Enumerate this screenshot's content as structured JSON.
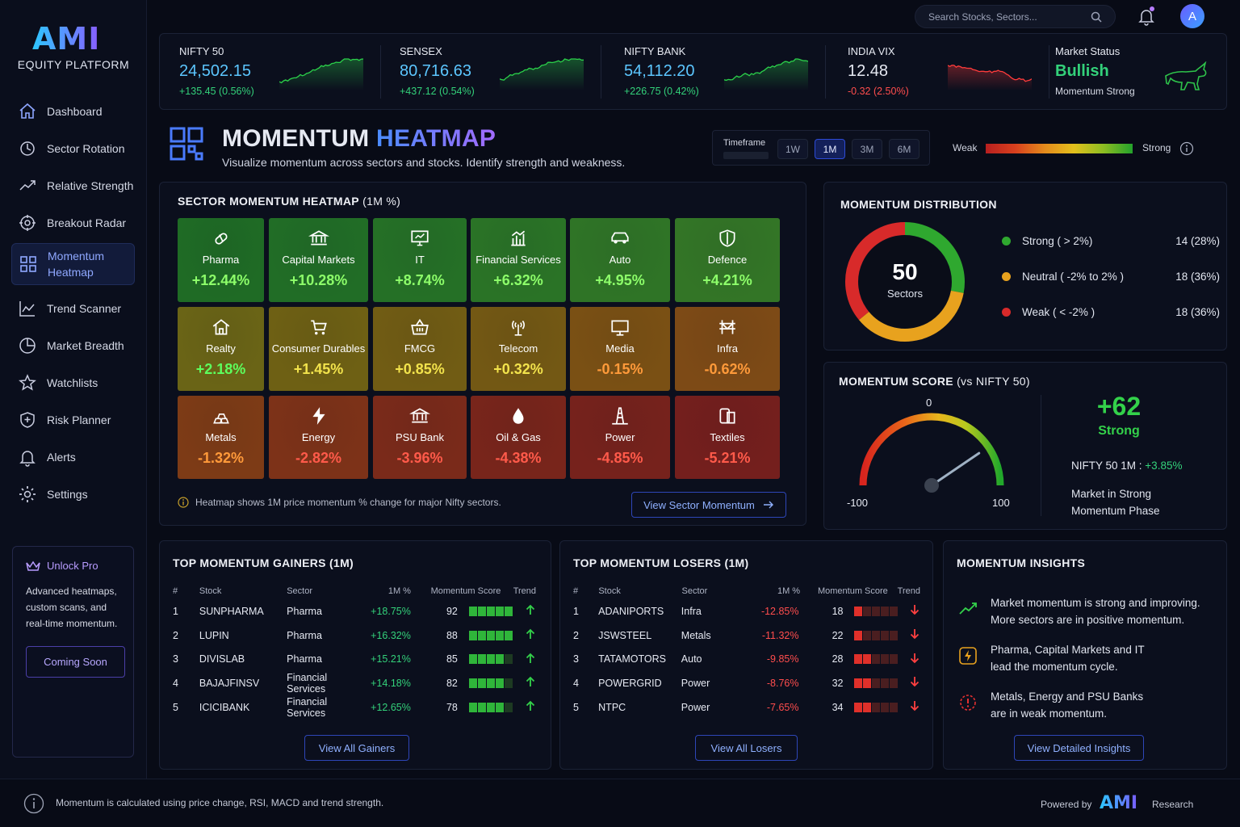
{
  "app": {
    "logo": "AMI",
    "logo_sub": "EQUITY PLATFORM"
  },
  "sidebar": {
    "items": [
      {
        "label": "Dashboard",
        "icon": "home-icon"
      },
      {
        "label": "Sector Rotation",
        "icon": "rotation-icon"
      },
      {
        "label": "Relative Strength",
        "icon": "trend-up-icon"
      },
      {
        "label": "Breakout Radar",
        "icon": "radar-icon"
      },
      {
        "label": "Momentum\nHeatmap",
        "icon": "grid-icon",
        "active": true
      },
      {
        "label": "Trend Scanner",
        "icon": "chart-icon"
      },
      {
        "label": "Market Breadth",
        "icon": "pie-icon"
      },
      {
        "label": "Watchlists",
        "icon": "star-icon"
      },
      {
        "label": "Risk Planner",
        "icon": "shield-icon"
      },
      {
        "label": "Alerts",
        "icon": "bell-icon"
      },
      {
        "label": "Settings",
        "icon": "gear-icon"
      }
    ],
    "pro": {
      "title": "Unlock Pro",
      "desc": "Advanced heatmaps, custom scans, and real-time momentum.",
      "button": "Coming Soon"
    }
  },
  "topbar": {
    "search_placeholder": "Search Stocks, Sectors...",
    "avatar": "A"
  },
  "tickers": [
    {
      "name": "NIFTY 50",
      "value": "24,502.15",
      "change": "+135.45 (0.56%)",
      "dir": "up"
    },
    {
      "name": "SENSEX",
      "value": "80,716.63",
      "change": "+437.12 (0.54%)",
      "dir": "up"
    },
    {
      "name": "NIFTY BANK",
      "value": "54,112.20",
      "change": "+226.75 (0.42%)",
      "dir": "up"
    },
    {
      "name": "INDIA VIX",
      "value": "12.48",
      "change": "-0.32 (2.50%)",
      "dir": "down"
    }
  ],
  "market_status": {
    "label": "Market Status",
    "value": "Bullish",
    "sub": "Momentum Strong"
  },
  "page": {
    "title_a": "MOMENTUM",
    "title_b": "HEATMAP",
    "subtitle": "Visualize momentum across sectors and stocks. Identify strength and weakness."
  },
  "timeframe": {
    "label": "Timeframe",
    "options": [
      "1W",
      "1M",
      "3M",
      "6M"
    ],
    "selected": "1M"
  },
  "strength_legend": {
    "weak": "Weak",
    "strong": "Strong"
  },
  "heatmap": {
    "title": "SECTOR MOMENTUM HEATMAP",
    "title_suffix": "(1M %)",
    "tiles": [
      {
        "name": "Pharma",
        "value": "+12.44%",
        "color": "#1f6b25",
        "icon": "pill-icon"
      },
      {
        "name": "Capital Markets",
        "value": "+10.28%",
        "color": "#216d26",
        "icon": "bank-icon"
      },
      {
        "name": "IT",
        "value": "+8.74%",
        "color": "#257026",
        "icon": "monitor-icon"
      },
      {
        "name": "Financial Services",
        "value": "+6.32%",
        "color": "#2a7326",
        "icon": "building-chart-icon"
      },
      {
        "name": "Auto",
        "value": "+4.95%",
        "color": "#2f7426",
        "icon": "car-icon"
      },
      {
        "name": "Defence",
        "value": "+4.21%",
        "color": "#337526",
        "icon": "shield-icon"
      },
      {
        "name": "Realty",
        "value": "+2.18%",
        "color": "#6a6416",
        "icon": "house-icon"
      },
      {
        "name": "Consumer Durables",
        "value": "+1.45%",
        "color": "#6e6014",
        "icon": "cart-icon"
      },
      {
        "name": "FMCG",
        "value": "+0.85%",
        "color": "#715c14",
        "icon": "basket-icon"
      },
      {
        "name": "Telecom",
        "value": "+0.32%",
        "color": "#735814",
        "icon": "antenna-icon"
      },
      {
        "name": "Media",
        "value": "-0.15%",
        "color": "#7a5014",
        "icon": "tv-icon"
      },
      {
        "name": "Infra",
        "value": "-0.62%",
        "color": "#7d4a16",
        "icon": "bridge-icon"
      },
      {
        "name": "Metals",
        "value": "-1.32%",
        "color": "#7d3b16",
        "icon": "ingots-icon"
      },
      {
        "name": "Energy",
        "value": "-2.82%",
        "color": "#7d3218",
        "icon": "bolt-icon"
      },
      {
        "name": "PSU Bank",
        "value": "-3.96%",
        "color": "#7a2a1a",
        "icon": "bank-icon"
      },
      {
        "name": "Oil & Gas",
        "value": "-4.38%",
        "color": "#78251b",
        "icon": "drop-icon"
      },
      {
        "name": "Power",
        "value": "-4.85%",
        "color": "#76221c",
        "icon": "tower-icon"
      },
      {
        "name": "Textiles",
        "value": "-5.21%",
        "color": "#741f1d",
        "icon": "fabric-icon"
      }
    ],
    "note": "Heatmap shows 1M price momentum % change for major Nifty sectors.",
    "button": "View Sector Momentum"
  },
  "distribution": {
    "title": "MOMENTUM DISTRIBUTION",
    "total": "50",
    "total_label": "Sectors",
    "rows": [
      {
        "label": "Strong ( > 2%)",
        "count": "14 (28%)",
        "color": "#2fa82f",
        "share": 0.28
      },
      {
        "label": "Neutral ( -2% to 2% )",
        "count": "18 (36%)",
        "color": "#e8a21e",
        "share": 0.36
      },
      {
        "label": "Weak ( < -2% )",
        "count": "18 (36%)",
        "color": "#d82a2a",
        "share": 0.36
      }
    ]
  },
  "score": {
    "title": "MOMENTUM SCORE",
    "title_suffix": "(vs NIFTY 50)",
    "value": "+62",
    "label": "Strong",
    "gauge_min": "-100",
    "gauge_mid": "0",
    "gauge_max": "100",
    "gauge_value": 62,
    "nifty_label": "NIFTY 50 1M :",
    "nifty_value": "+3.85%",
    "phase": "Market in Strong\nMomentum Phase"
  },
  "gainers": {
    "title": "TOP MOMENTUM GAINERS (1M)",
    "headers": [
      "#",
      "Stock",
      "Sector",
      "1M %",
      "Momentum Score",
      "Trend"
    ],
    "rows": [
      {
        "n": "1",
        "stock": "SUNPHARMA",
        "sector": "Pharma",
        "pct": "+18.75%",
        "score": "92",
        "bars": 5
      },
      {
        "n": "2",
        "stock": "LUPIN",
        "sector": "Pharma",
        "pct": "+16.32%",
        "score": "88",
        "bars": 5
      },
      {
        "n": "3",
        "stock": "DIVISLAB",
        "sector": "Pharma",
        "pct": "+15.21%",
        "score": "85",
        "bars": 4
      },
      {
        "n": "4",
        "stock": "BAJAJFINSV",
        "sector": "Financial Services",
        "pct": "+14.18%",
        "score": "82",
        "bars": 4
      },
      {
        "n": "5",
        "stock": "ICICIBANK",
        "sector": "Financial Services",
        "pct": "+12.65%",
        "score": "78",
        "bars": 4
      }
    ],
    "button": "View All Gainers"
  },
  "losers": {
    "title": "TOP MOMENTUM LOSERS (1M)",
    "headers": [
      "#",
      "Stock",
      "Sector",
      "1M %",
      "Momentum Score",
      "Trend"
    ],
    "rows": [
      {
        "n": "1",
        "stock": "ADANIPORTS",
        "sector": "Infra",
        "pct": "-12.85%",
        "score": "18",
        "bars": 1
      },
      {
        "n": "2",
        "stock": "JSWSTEEL",
        "sector": "Metals",
        "pct": "-11.32%",
        "score": "22",
        "bars": 1
      },
      {
        "n": "3",
        "stock": "TATAMOTORS",
        "sector": "Auto",
        "pct": "-9.85%",
        "score": "28",
        "bars": 2
      },
      {
        "n": "4",
        "stock": "POWERGRID",
        "sector": "Power",
        "pct": "-8.76%",
        "score": "32",
        "bars": 2
      },
      {
        "n": "5",
        "stock": "NTPC",
        "sector": "Power",
        "pct": "-7.65%",
        "score": "34",
        "bars": 2
      }
    ],
    "button": "View All Losers"
  },
  "insights": {
    "title": "MOMENTUM INSIGHTS",
    "items": [
      {
        "text": "Market momentum is strong and improving.\nMore sectors are in positive momentum.",
        "icon": "trend-up-icon"
      },
      {
        "text": "Pharma, Capital Markets and IT\nlead the momentum cycle.",
        "icon": "bolt-icon"
      },
      {
        "text": "Metals, Energy and PSU Banks\nare in weak momentum.",
        "icon": "warning-icon"
      }
    ],
    "button": "View Detailed Insights"
  },
  "footer": {
    "note": "Momentum is calculated using price change, RSI, MACD and trend strength.",
    "powered": "Powered by",
    "brand": "AMI",
    "research": "Research"
  }
}
